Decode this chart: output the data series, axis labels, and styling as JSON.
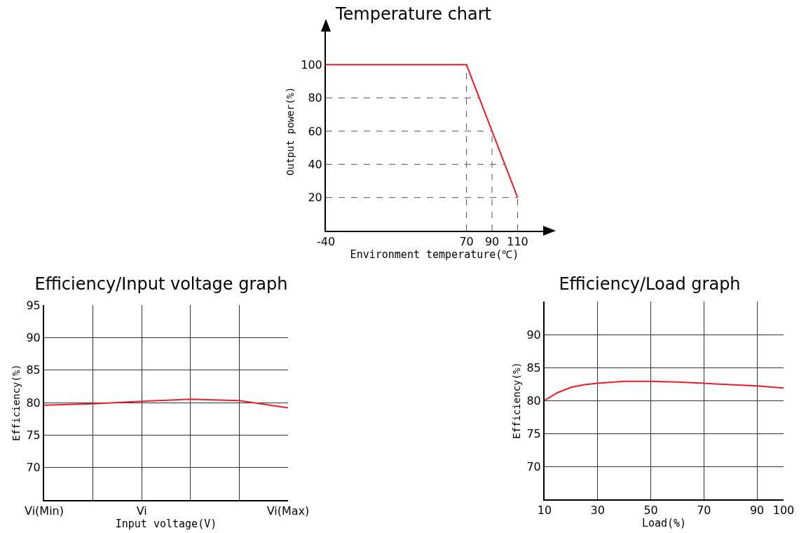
{
  "chart_data": [
    {
      "type": "line",
      "title": "Temperature chart",
      "xlabel": "Environment temperature(℃)",
      "ylabel": "Output power(%)",
      "series": [
        {
          "color": "#ee1c25",
          "x": [
            -40,
            70,
            110
          ],
          "values": [
            100,
            100,
            20
          ]
        }
      ],
      "xlim": [
        -40,
        130
      ],
      "xticks": [
        -40,
        70,
        90,
        110
      ],
      "ylim": [
        0,
        120
      ],
      "yticks": [
        20,
        40,
        60,
        80,
        100
      ],
      "grid": false,
      "ref_lines": [
        {
          "axis": "x",
          "value": 70,
          "line_style": "dashed",
          "color": "#555555"
        },
        {
          "axis": "x",
          "value": 90,
          "line_style": "dashed",
          "color": "#555555"
        },
        {
          "axis": "x",
          "value": 110,
          "line_style": "dashed",
          "color": "#555555"
        },
        {
          "axis": "y",
          "value": 80,
          "line_style": "dashed",
          "color": "#555555"
        },
        {
          "axis": "y",
          "value": 60,
          "line_style": "dashed",
          "color": "#555555"
        },
        {
          "axis": "y",
          "value": 40,
          "line_style": "dashed",
          "color": "#555555"
        },
        {
          "axis": "y",
          "value": 20,
          "line_style": "dashed",
          "color": "#555555"
        }
      ]
    },
    {
      "type": "line",
      "title": "Efficiency/Input voltage graph",
      "xlabel": "Input voltage(V)",
      "ylabel": "Efficiency(%)",
      "categories": [
        "Vi(Min)",
        null,
        "Vi",
        null,
        null,
        "Vi(Max)"
      ],
      "series": [
        {
          "color": "#ee1c25",
          "values": [
            79.6,
            79.8,
            80.2,
            80.5,
            80.3,
            79.2
          ]
        }
      ],
      "ylim": [
        65,
        95
      ],
      "yticks": [
        70,
        75,
        80,
        85,
        90,
        95
      ],
      "grid": true
    },
    {
      "type": "line",
      "title": "Efficiency/Load graph",
      "xlabel": "Load(%)",
      "ylabel": "Efficiency(%)",
      "series": [
        {
          "color": "#ee1c25",
          "x": [
            10,
            15,
            20,
            25,
            30,
            40,
            50,
            60,
            70,
            80,
            90,
            100
          ],
          "values": [
            80.0,
            81.2,
            82.0,
            82.4,
            82.6,
            82.9,
            82.9,
            82.8,
            82.6,
            82.4,
            82.2,
            81.9
          ]
        }
      ],
      "xlim": [
        10,
        100
      ],
      "xticks": [
        10,
        30,
        50,
        70,
        90,
        100
      ],
      "ylim": [
        65,
        95
      ],
      "yticks": [
        70,
        75,
        80,
        85,
        90
      ],
      "grid": true
    }
  ]
}
